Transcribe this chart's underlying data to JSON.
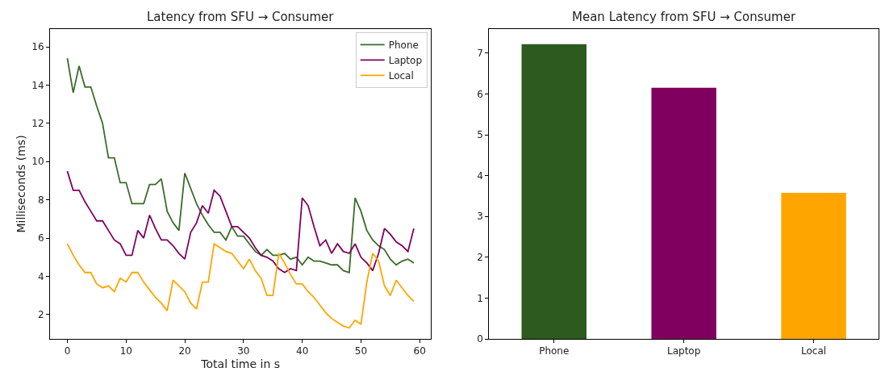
{
  "chart_data": [
    {
      "type": "line",
      "title": "Latency from SFU → Consumer",
      "xlabel": "Total time in s",
      "ylabel": "Milliseconds (ms)",
      "x": [
        0,
        1,
        2,
        3,
        4,
        5,
        6,
        7,
        8,
        9,
        10,
        11,
        12,
        13,
        14,
        15,
        16,
        17,
        18,
        19,
        20,
        21,
        22,
        23,
        24,
        25,
        26,
        27,
        28,
        29,
        30,
        31,
        32,
        33,
        34,
        35,
        36,
        37,
        38,
        39,
        40,
        41,
        42,
        43,
        44,
        45,
        46,
        47,
        48,
        49,
        50,
        51,
        52,
        53,
        54,
        55,
        56,
        57,
        58,
        59
      ],
      "series": [
        {
          "name": "Phone",
          "color": "#3a6b2a",
          "values": [
            15.4,
            13.6,
            15.0,
            13.9,
            13.9,
            12.9,
            12.0,
            10.2,
            10.2,
            8.9,
            8.9,
            7.8,
            7.8,
            7.8,
            8.8,
            8.8,
            9.1,
            7.4,
            6.8,
            6.4,
            9.4,
            8.6,
            7.8,
            7.2,
            6.7,
            6.3,
            6.3,
            5.9,
            6.6,
            6.1,
            6.1,
            5.7,
            5.3,
            5.1,
            5.4,
            5.1,
            5.1,
            5.2,
            4.9,
            5.0,
            4.6,
            5.0,
            4.8,
            4.8,
            4.7,
            4.6,
            4.6,
            4.3,
            4.2,
            8.1,
            7.4,
            6.4,
            5.9,
            5.6,
            5.4,
            4.9,
            4.6,
            4.8,
            4.9,
            4.7
          ]
        },
        {
          "name": "Laptop",
          "color": "#800060",
          "values": [
            9.5,
            8.5,
            8.5,
            7.9,
            7.4,
            6.9,
            6.9,
            6.4,
            5.9,
            5.7,
            5.1,
            5.1,
            6.4,
            6.0,
            7.2,
            6.5,
            5.9,
            5.9,
            5.6,
            5.2,
            4.9,
            6.3,
            6.8,
            7.7,
            7.3,
            8.5,
            8.2,
            7.4,
            6.6,
            6.6,
            6.3,
            6.0,
            5.5,
            5.1,
            5.0,
            4.8,
            4.4,
            4.2,
            4.4,
            4.3,
            8.1,
            7.7,
            6.6,
            5.6,
            5.9,
            5.2,
            5.7,
            5.3,
            5.2,
            5.7,
            5.0,
            4.7,
            4.3,
            5.2,
            6.5,
            6.2,
            5.8,
            5.6,
            5.3,
            6.5
          ]
        },
        {
          "name": "Local",
          "color": "#ffa500",
          "values": [
            5.7,
            5.1,
            4.6,
            4.2,
            4.2,
            3.6,
            3.4,
            3.5,
            3.2,
            3.9,
            3.7,
            4.2,
            4.2,
            3.7,
            3.3,
            2.9,
            2.6,
            2.2,
            3.8,
            3.5,
            3.2,
            2.6,
            2.3,
            3.7,
            3.7,
            5.7,
            5.5,
            5.3,
            5.2,
            4.8,
            4.4,
            4.9,
            4.3,
            3.9,
            3.0,
            3.0,
            5.2,
            4.7,
            4.1,
            3.6,
            3.6,
            3.2,
            2.9,
            2.5,
            2.1,
            1.8,
            1.6,
            1.4,
            1.3,
            1.7,
            1.5,
            3.7,
            5.2,
            4.8,
            3.5,
            3.0,
            3.8,
            3.4,
            3.0,
            2.7
          ]
        }
      ],
      "xlim": [
        -2.95,
        61.95
      ],
      "xticks": [
        0,
        10,
        20,
        30,
        40,
        50,
        60
      ],
      "ylim": [
        0.73,
        16.93
      ],
      "yticks": [
        2,
        4,
        6,
        8,
        10,
        12,
        14,
        16
      ],
      "legend": "top right"
    },
    {
      "type": "bar",
      "title": "Mean Latency from SFU → Consumer",
      "categories": [
        "Phone",
        "Laptop",
        "Local"
      ],
      "values": [
        7.22,
        6.15,
        3.58
      ],
      "colors": [
        "#2d5a1e",
        "#800060",
        "#ffa500"
      ],
      "ylim": [
        0,
        7.59
      ],
      "yticks": [
        0,
        1,
        2,
        3,
        4,
        5,
        6,
        7
      ]
    }
  ]
}
